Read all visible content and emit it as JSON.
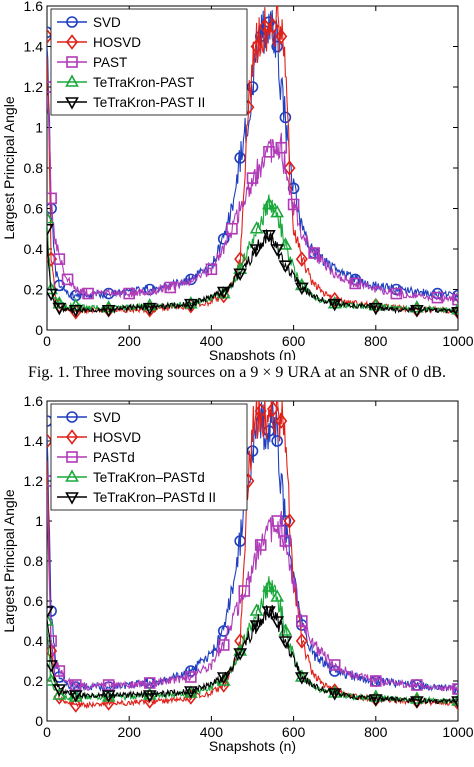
{
  "figures": [
    {
      "caption": "Fig. 1.   Three moving sources on a 9 × 9 URA at an SNR of 0 dB."
    },
    {
      "caption": ""
    }
  ],
  "colors": {
    "SVD": "#1f3fbf",
    "HOSVD": "#e0201a",
    "PAST": "#b03ab8",
    "TeTraKron": "#1aa83a",
    "TeTraKronII": "#000000"
  },
  "chart_data": [
    {
      "type": "line",
      "xlabel": "Snapshots (n)",
      "ylabel": "Largest Principal Angle",
      "xlim": [
        0,
        1000
      ],
      "ylim": [
        0,
        1.6
      ],
      "xticks": [
        0,
        200,
        400,
        600,
        800,
        1000
      ],
      "yticks": [
        0,
        0.2,
        0.4,
        0.6,
        0.8,
        1,
        1.2,
        1.4,
        1.6
      ],
      "grid": false,
      "legend": "top-left",
      "series": [
        {
          "name": "SVD",
          "marker": "circle",
          "color": "#1f3fbf",
          "x": [
            0,
            5,
            10,
            20,
            30,
            50,
            70,
            100,
            150,
            200,
            250,
            300,
            350,
            400,
            430,
            450,
            470,
            490,
            500,
            510,
            520,
            530,
            540,
            550,
            560,
            570,
            580,
            590,
            600,
            620,
            650,
            700,
            750,
            800,
            850,
            900,
            950,
            1000
          ],
          "y": [
            1.47,
            1.1,
            0.6,
            0.3,
            0.22,
            0.18,
            0.17,
            0.17,
            0.18,
            0.19,
            0.2,
            0.22,
            0.25,
            0.31,
            0.45,
            0.6,
            0.85,
            1.05,
            1.2,
            1.35,
            1.45,
            1.5,
            1.52,
            1.45,
            1.4,
            1.2,
            1.05,
            0.85,
            0.7,
            0.5,
            0.38,
            0.3,
            0.25,
            0.22,
            0.2,
            0.19,
            0.18,
            0.17
          ]
        },
        {
          "name": "HOSVD",
          "marker": "diamond",
          "color": "#e0201a",
          "x": [
            0,
            5,
            10,
            20,
            30,
            50,
            70,
            100,
            150,
            200,
            250,
            300,
            350,
            400,
            430,
            450,
            470,
            480,
            490,
            500,
            510,
            520,
            530,
            540,
            550,
            560,
            570,
            580,
            590,
            600,
            620,
            650,
            700,
            750,
            800,
            850,
            900,
            950,
            1000
          ],
          "y": [
            1.45,
            0.9,
            0.35,
            0.17,
            0.12,
            0.1,
            0.09,
            0.1,
            0.1,
            0.1,
            0.1,
            0.11,
            0.12,
            0.14,
            0.17,
            0.22,
            0.35,
            0.7,
            1.1,
            1.3,
            1.4,
            1.45,
            1.5,
            1.45,
            1.5,
            1.55,
            1.45,
            1.35,
            0.8,
            0.5,
            0.35,
            0.22,
            0.15,
            0.13,
            0.12,
            0.11,
            0.1,
            0.1,
            0.09
          ]
        },
        {
          "name": "PAST",
          "marker": "square",
          "color": "#b03ab8",
          "x": [
            0,
            5,
            10,
            20,
            30,
            40,
            50,
            70,
            100,
            150,
            200,
            250,
            300,
            350,
            400,
            430,
            450,
            480,
            500,
            520,
            540,
            560,
            570,
            580,
            600,
            620,
            650,
            700,
            750,
            800,
            850,
            900,
            950,
            1000
          ],
          "y": [
            1.2,
            1.0,
            0.65,
            0.45,
            0.35,
            0.3,
            0.25,
            0.2,
            0.18,
            0.18,
            0.18,
            0.19,
            0.21,
            0.24,
            0.3,
            0.4,
            0.5,
            0.65,
            0.75,
            0.8,
            0.88,
            0.92,
            0.9,
            0.8,
            0.62,
            0.48,
            0.38,
            0.28,
            0.23,
            0.2,
            0.18,
            0.17,
            0.16,
            0.15
          ]
        },
        {
          "name": "TeTraKron-PAST",
          "marker": "triangle",
          "color": "#1aa83a",
          "x": [
            0,
            5,
            10,
            20,
            30,
            50,
            70,
            100,
            150,
            200,
            250,
            300,
            350,
            400,
            430,
            450,
            470,
            490,
            510,
            530,
            540,
            550,
            560,
            570,
            580,
            600,
            620,
            650,
            700,
            750,
            800,
            850,
            900,
            950,
            1000
          ],
          "y": [
            0.55,
            0.35,
            0.2,
            0.15,
            0.13,
            0.12,
            0.12,
            0.11,
            0.11,
            0.11,
            0.12,
            0.12,
            0.13,
            0.16,
            0.18,
            0.22,
            0.3,
            0.4,
            0.5,
            0.58,
            0.62,
            0.6,
            0.58,
            0.5,
            0.42,
            0.3,
            0.22,
            0.16,
            0.13,
            0.12,
            0.12,
            0.11,
            0.11,
            0.1,
            0.1
          ]
        },
        {
          "name": "TeTraKron-PAST II",
          "marker": "triangle-down",
          "color": "#000000",
          "x": [
            0,
            5,
            10,
            20,
            30,
            50,
            70,
            100,
            150,
            200,
            250,
            300,
            350,
            400,
            430,
            450,
            470,
            490,
            510,
            530,
            540,
            550,
            560,
            570,
            580,
            600,
            620,
            650,
            700,
            750,
            800,
            850,
            900,
            950,
            1000
          ],
          "y": [
            0.5,
            0.3,
            0.18,
            0.13,
            0.11,
            0.1,
            0.1,
            0.1,
            0.1,
            0.11,
            0.11,
            0.12,
            0.13,
            0.16,
            0.19,
            0.23,
            0.28,
            0.34,
            0.4,
            0.45,
            0.47,
            0.44,
            0.4,
            0.35,
            0.32,
            0.26,
            0.21,
            0.16,
            0.13,
            0.12,
            0.11,
            0.1,
            0.1,
            0.1,
            0.09
          ]
        }
      ]
    },
    {
      "type": "line",
      "xlabel": "Snapshots (n)",
      "ylabel": "Largest Principal Angle",
      "xlim": [
        0,
        1000
      ],
      "ylim": [
        0,
        1.6
      ],
      "xticks": [
        0,
        200,
        400,
        600,
        800,
        1000
      ],
      "yticks": [
        0,
        0.2,
        0.4,
        0.6,
        0.8,
        1,
        1.2,
        1.4,
        1.6
      ],
      "grid": false,
      "legend": "top-left",
      "series": [
        {
          "name": "SVD",
          "marker": "circle",
          "color": "#1f3fbf",
          "x": [
            0,
            5,
            10,
            20,
            30,
            50,
            70,
            100,
            150,
            200,
            250,
            300,
            350,
            400,
            430,
            450,
            470,
            480,
            500,
            520,
            540,
            550,
            560,
            570,
            580,
            600,
            620,
            650,
            700,
            750,
            800,
            850,
            900,
            950,
            1000
          ],
          "y": [
            1.5,
            1.0,
            0.55,
            0.3,
            0.22,
            0.18,
            0.17,
            0.17,
            0.17,
            0.18,
            0.19,
            0.21,
            0.25,
            0.33,
            0.45,
            0.65,
            0.9,
            1.1,
            1.35,
            1.5,
            1.45,
            1.52,
            1.4,
            1.2,
            1.0,
            0.7,
            0.48,
            0.33,
            0.25,
            0.22,
            0.2,
            0.19,
            0.18,
            0.17,
            0.16
          ]
        },
        {
          "name": "HOSVD",
          "marker": "diamond",
          "color": "#e0201a",
          "x": [
            0,
            5,
            10,
            20,
            30,
            50,
            70,
            100,
            150,
            200,
            250,
            300,
            350,
            400,
            430,
            450,
            470,
            480,
            490,
            500,
            520,
            540,
            550,
            560,
            570,
            580,
            590,
            600,
            620,
            650,
            700,
            750,
            800,
            850,
            900,
            950,
            1000
          ],
          "y": [
            1.4,
            0.8,
            0.35,
            0.18,
            0.12,
            0.09,
            0.08,
            0.08,
            0.09,
            0.09,
            0.1,
            0.1,
            0.12,
            0.14,
            0.18,
            0.25,
            0.4,
            0.8,
            1.2,
            1.45,
            1.55,
            1.5,
            1.56,
            1.55,
            1.5,
            1.45,
            1.0,
            0.7,
            0.4,
            0.22,
            0.15,
            0.12,
            0.11,
            0.1,
            0.1,
            0.09,
            0.09
          ]
        },
        {
          "name": "PASTd",
          "marker": "square",
          "color": "#b03ab8",
          "x": [
            0,
            5,
            10,
            20,
            30,
            50,
            70,
            100,
            150,
            200,
            250,
            300,
            350,
            400,
            430,
            450,
            480,
            500,
            520,
            540,
            560,
            570,
            580,
            600,
            620,
            650,
            700,
            750,
            800,
            850,
            900,
            950,
            1000
          ],
          "y": [
            1.2,
            0.7,
            0.4,
            0.3,
            0.25,
            0.2,
            0.18,
            0.17,
            0.18,
            0.18,
            0.19,
            0.2,
            0.22,
            0.28,
            0.38,
            0.5,
            0.65,
            0.78,
            0.88,
            0.95,
            1.0,
            0.97,
            0.9,
            0.7,
            0.5,
            0.38,
            0.28,
            0.23,
            0.2,
            0.19,
            0.18,
            0.17,
            0.16
          ]
        },
        {
          "name": "TeTraKron–PASTd",
          "marker": "triangle",
          "color": "#1aa83a",
          "x": [
            0,
            5,
            10,
            20,
            30,
            50,
            70,
            100,
            150,
            200,
            250,
            300,
            350,
            400,
            430,
            450,
            470,
            490,
            510,
            530,
            540,
            550,
            560,
            570,
            580,
            600,
            620,
            650,
            700,
            750,
            800,
            850,
            900,
            950,
            1000
          ],
          "y": [
            0.5,
            0.32,
            0.2,
            0.15,
            0.13,
            0.12,
            0.12,
            0.12,
            0.12,
            0.12,
            0.13,
            0.13,
            0.14,
            0.17,
            0.2,
            0.26,
            0.35,
            0.45,
            0.55,
            0.63,
            0.67,
            0.66,
            0.62,
            0.55,
            0.45,
            0.32,
            0.22,
            0.17,
            0.14,
            0.12,
            0.12,
            0.11,
            0.11,
            0.1,
            0.1
          ]
        },
        {
          "name": "TeTraKron–PASTd II",
          "marker": "triangle-down",
          "color": "#000000",
          "x": [
            0,
            5,
            10,
            20,
            30,
            50,
            70,
            100,
            150,
            200,
            250,
            300,
            350,
            400,
            430,
            450,
            470,
            490,
            510,
            530,
            540,
            550,
            560,
            570,
            580,
            600,
            620,
            650,
            700,
            750,
            800,
            850,
            900,
            950,
            1000
          ],
          "y": [
            0.55,
            0.45,
            0.28,
            0.2,
            0.16,
            0.14,
            0.13,
            0.13,
            0.13,
            0.13,
            0.13,
            0.14,
            0.15,
            0.18,
            0.22,
            0.27,
            0.34,
            0.42,
            0.48,
            0.53,
            0.55,
            0.54,
            0.5,
            0.46,
            0.4,
            0.3,
            0.22,
            0.17,
            0.14,
            0.12,
            0.11,
            0.11,
            0.1,
            0.1,
            0.1
          ]
        }
      ]
    }
  ]
}
